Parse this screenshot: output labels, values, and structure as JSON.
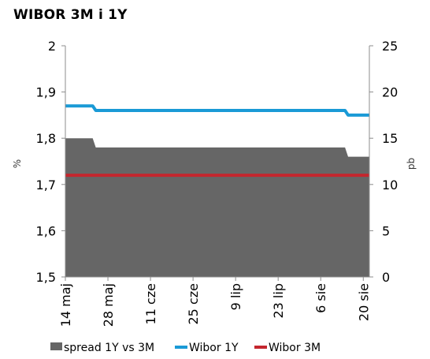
{
  "chart_data": {
    "type": "area+line",
    "title": "WIBOR 3M i 1Y",
    "x_tick_labels": [
      "14 maj",
      "28 maj",
      "11 cze",
      "25 cze",
      "9 lip",
      "23 lip",
      "6 sie",
      "20 sie"
    ],
    "x_tick_dates": [
      "2012-05-14",
      "2012-05-28",
      "2012-06-11",
      "2012-06-25",
      "2012-07-09",
      "2012-07-23",
      "2012-08-06",
      "2012-08-20"
    ],
    "xlim": [
      "2012-05-14",
      "2012-08-22"
    ],
    "y_left": {
      "label": "%",
      "range": [
        1.5,
        2.0
      ],
      "ticks": [
        "1,5",
        "1,6",
        "1,7",
        "1,8",
        "1,9",
        "2"
      ]
    },
    "y_right": {
      "label": "pb",
      "range": [
        0,
        25
      ],
      "ticks": [
        "0",
        "5",
        "10",
        "15",
        "20",
        "25"
      ]
    },
    "legend_placement": "bottom",
    "series": [
      {
        "name": "spread 1Y vs 3M",
        "kind": "area",
        "axis": "right",
        "color": "#666666",
        "points": [
          {
            "x": "2012-05-14",
            "y": 15
          },
          {
            "x": "2012-05-23",
            "y": 15
          },
          {
            "x": "2012-05-24",
            "y": 14
          },
          {
            "x": "2012-08-14",
            "y": 14
          },
          {
            "x": "2012-08-15",
            "y": 13
          },
          {
            "x": "2012-08-22",
            "y": 13
          }
        ]
      },
      {
        "name": "Wibor 1Y",
        "kind": "line",
        "axis": "left",
        "color": "#1a9ad6",
        "points": [
          {
            "x": "2012-05-14",
            "y": 1.87
          },
          {
            "x": "2012-05-23",
            "y": 1.87
          },
          {
            "x": "2012-05-24",
            "y": 1.86
          },
          {
            "x": "2012-08-14",
            "y": 1.86
          },
          {
            "x": "2012-08-15",
            "y": 1.85
          },
          {
            "x": "2012-08-22",
            "y": 1.85
          }
        ]
      },
      {
        "name": "Wibor 3M",
        "kind": "line",
        "axis": "left",
        "color": "#c4262e",
        "points": [
          {
            "x": "2012-05-14",
            "y": 1.72
          },
          {
            "x": "2012-08-22",
            "y": 1.72
          }
        ]
      }
    ]
  }
}
